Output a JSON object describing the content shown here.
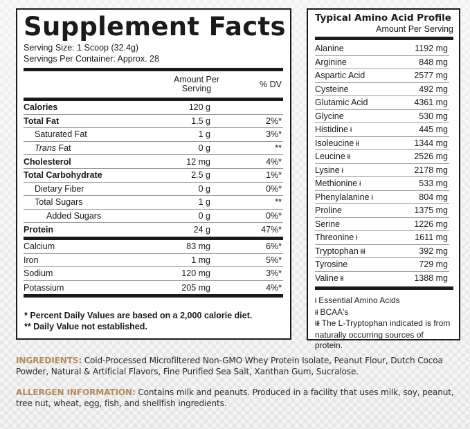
{
  "supplement_facts": {
    "title": "Supplement Facts",
    "serving_size": "Serving Size: 1 Scoop (32.4g)",
    "servings_per_container": "Servings Per Container: Approx. 28",
    "col_amount": "Amount Per Serving",
    "col_dv": "% DV",
    "rows": [
      {
        "name": "Calories",
        "amount": "120 g",
        "dv": ""
      },
      {
        "name": "Total Fat",
        "amount": "1.5 g",
        "dv": "2%*"
      },
      {
        "name": "Saturated Fat",
        "amount": "1 g",
        "dv": "3%*"
      },
      {
        "name_italic": "Trans",
        "name": " Fat",
        "amount": "0 g",
        "dv": "**"
      },
      {
        "name": "Cholesterol",
        "amount": "12 mg",
        "dv": "4%*"
      },
      {
        "name": "Total Carbohydrate",
        "amount": "2.5 g",
        "dv": "1%*"
      },
      {
        "name": "Dietary Fiber",
        "amount": "0 g",
        "dv": "0%*"
      },
      {
        "name": "Total Sugars",
        "amount": "1 g",
        "dv": "**"
      },
      {
        "name": "Added Sugars",
        "amount": "0 g",
        "dv": "0%*"
      },
      {
        "name": "Protein",
        "amount": "24 g",
        "dv": "47%*"
      }
    ],
    "minerals": [
      {
        "name": "Calcium",
        "amount": "83 mg",
        "dv": "6%*"
      },
      {
        "name": "Iron",
        "amount": "1 mg",
        "dv": "5%*"
      },
      {
        "name": "Sodium",
        "amount": "120 mg",
        "dv": "3%*"
      },
      {
        "name": "Potassium",
        "amount": "205 mg",
        "dv": "4%*"
      }
    ],
    "footnotes": [
      "* Percent Daily Values are based on a 2,000 calorie diet.",
      "** Daily Value not established."
    ]
  },
  "amino_profile": {
    "title": "Typical Amino Acid Profile",
    "subtitle": "Amount Per Serving",
    "rows": [
      {
        "name": "Alanine",
        "mark": "",
        "amount": "1192 mg"
      },
      {
        "name": "Arginine",
        "mark": "",
        "amount": "848 mg"
      },
      {
        "name": "Aspartic Acid",
        "mark": "",
        "amount": "2577 mg"
      },
      {
        "name": "Cysteine",
        "mark": "",
        "amount": "492 mg"
      },
      {
        "name": "Glutamic Acid",
        "mark": "",
        "amount": "4361 mg"
      },
      {
        "name": "Glycine",
        "mark": "",
        "amount": "530 mg"
      },
      {
        "name": "Histidine",
        "mark": "ł",
        "amount": "445 mg"
      },
      {
        "name": "Isoleucine",
        "mark": "łł",
        "amount": "1344 mg"
      },
      {
        "name": "Leucine",
        "mark": "łł",
        "amount": "2526 mg"
      },
      {
        "name": "Lysine",
        "mark": "ł",
        "amount": "2178 mg"
      },
      {
        "name": "Methionine",
        "mark": "ł",
        "amount": "533 mg"
      },
      {
        "name": "Phenylalanine",
        "mark": "ł",
        "amount": "804 mg"
      },
      {
        "name": "Proline",
        "mark": "",
        "amount": "1375 mg"
      },
      {
        "name": "Serine",
        "mark": "",
        "amount": "1226 mg"
      },
      {
        "name": "Threonine",
        "mark": "ł",
        "amount": "1611 mg"
      },
      {
        "name": "Tryptophan",
        "mark": "łłł",
        "amount": "392 mg"
      },
      {
        "name": "Tyrosine",
        "mark": "",
        "amount": "729 mg"
      },
      {
        "name": "Valine",
        "mark": "łł",
        "amount": "1388 mg"
      }
    ],
    "notes": [
      {
        "mark": "ł",
        "text": "Essential Amino Acids"
      },
      {
        "mark": "łł",
        "text": "BCAA's"
      },
      {
        "mark": "łłł",
        "text": "The L-Tryptophan indicated is from"
      },
      {
        "mark": "",
        "text": "naturally occurring sources of protein."
      }
    ]
  },
  "ingredients": {
    "label": "INGREDIENTS:",
    "text": " Cold-Processed Microfiltered Non-GMO Whey Protein Isolate, Peanut Flour, Dutch Cocoa Powder, Natural & Artificial Flavors, Fine Purified Sea Salt, Xanthan Gum, Sucralose."
  },
  "allergens": {
    "label": "ALLERGEN INFORMATION:",
    "text": " Contains milk and peanuts. Produced in a facility that uses milk, soy, peanut, tree nut, wheat, egg, fish, and shellfish ingredients."
  },
  "colors": {
    "label_accent": "#b8895a",
    "border": "#1a1a1a",
    "panel_bg": "#ffffff"
  }
}
